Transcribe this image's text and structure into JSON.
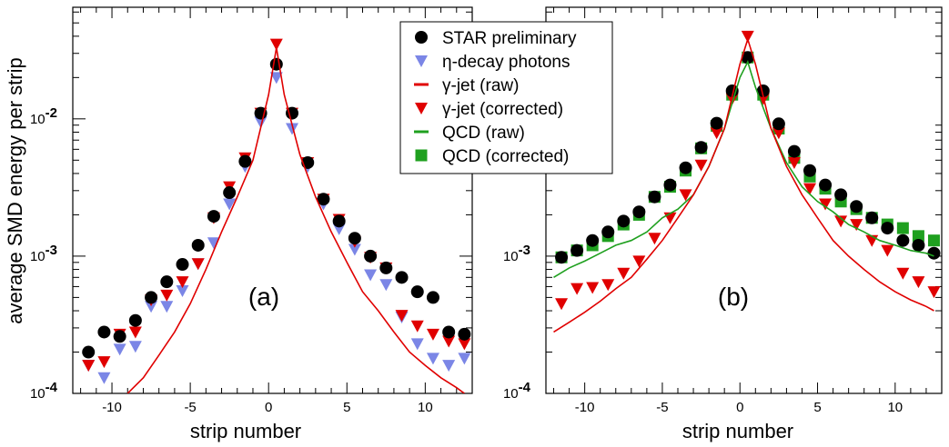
{
  "figure": {
    "ylabel": "average SMD energy per strip",
    "xlabel": "strip number"
  },
  "legend": {
    "items": [
      {
        "key": "star",
        "label": "STAR preliminary",
        "marker": "circle",
        "color": "#000000"
      },
      {
        "key": "eta",
        "label": "η-decay photons",
        "marker": "triangle-down",
        "color": "#7b86e6"
      },
      {
        "key": "gj_raw",
        "label": "γ-jet (raw)",
        "marker": "line",
        "color": "#e00000"
      },
      {
        "key": "gj_corr",
        "label": "γ-jet (corrected)",
        "marker": "triangle-down",
        "color": "#e00000"
      },
      {
        "key": "qcd_raw",
        "label": "QCD (raw)",
        "marker": "line",
        "color": "#1fa01f"
      },
      {
        "key": "qcd_corr",
        "label": "QCD (corrected)",
        "marker": "square",
        "color": "#1fa01f"
      }
    ]
  },
  "chart_data": [
    {
      "type": "scatter",
      "panel": "(a)",
      "xlabel": "strip number",
      "ylabel": "average SMD energy per strip",
      "yscale": "log",
      "xlim": [
        -12.5,
        13
      ],
      "ylim": [
        0.0001,
        0.065
      ],
      "xticks": [
        -10,
        -5,
        0,
        5,
        10
      ],
      "yticks": [
        {
          "value": 0.0001,
          "base": "10",
          "exp": "-4"
        },
        {
          "value": 0.001,
          "base": "10",
          "exp": "-3"
        },
        {
          "value": 0.01,
          "base": "10",
          "exp": "-2"
        }
      ],
      "series": [
        {
          "name": "η-decay photons",
          "marker": "triangle-down",
          "color": "#7b86e6",
          "x": [
            -11.5,
            -10.5,
            -9.5,
            -8.5,
            -7.5,
            -6.5,
            -5.5,
            -4.5,
            -3.5,
            -2.5,
            -1.5,
            -0.5,
            0.5,
            1.5,
            2.5,
            3.5,
            4.5,
            5.5,
            6.5,
            7.5,
            8.5,
            9.5,
            10.5,
            11.5,
            12.5
          ],
          "y": [
            0.00016,
            0.00013,
            0.00021,
            0.00022,
            0.00043,
            0.00043,
            0.00056,
            0.00088,
            0.00125,
            0.0024,
            0.0045,
            0.0095,
            0.02,
            0.0085,
            0.0045,
            0.0024,
            0.00158,
            0.00112,
            0.00073,
            0.00062,
            0.00036,
            0.00023,
            0.00018,
            0.00016,
            0.00018
          ]
        },
        {
          "name": "γ-jet (corrected)",
          "marker": "triangle-down",
          "color": "#e00000",
          "x": [
            -11.5,
            -10.5,
            -9.5,
            -8.5,
            -7.5,
            -6.5,
            -5.5,
            -4.5,
            -3.5,
            -2.5,
            -1.5,
            -0.5,
            0.5,
            1.5,
            2.5,
            3.5,
            4.5,
            5.5,
            6.5,
            7.5,
            8.5,
            9.5,
            10.5,
            11.5,
            12.5
          ],
          "y": [
            0.00016,
            0.00017,
            0.00027,
            0.00028,
            0.00048,
            0.00052,
            0.00065,
            0.00088,
            0.0019,
            0.0032,
            0.0052,
            0.011,
            0.035,
            0.011,
            0.0048,
            0.0026,
            0.00185,
            0.00128,
            0.00098,
            0.00082,
            0.00037,
            0.00031,
            0.00027,
            0.00024,
            0.00023
          ]
        },
        {
          "name": "STAR preliminary",
          "marker": "circle",
          "color": "#000000",
          "x": [
            -11.5,
            -10.5,
            -9.5,
            -8.5,
            -7.5,
            -6.5,
            -5.5,
            -4.5,
            -3.5,
            -2.5,
            -1.5,
            -0.5,
            0.5,
            1.5,
            2.5,
            3.5,
            4.5,
            5.5,
            6.5,
            7.5,
            8.5,
            9.5,
            10.5,
            11.5,
            12.5
          ],
          "y": [
            0.0002,
            0.00028,
            0.00026,
            0.00034,
            0.0005,
            0.00065,
            0.00087,
            0.0012,
            0.00195,
            0.0029,
            0.0049,
            0.011,
            0.025,
            0.011,
            0.0048,
            0.0026,
            0.0018,
            0.00135,
            0.001,
            0.00082,
            0.0007,
            0.00055,
            0.0005,
            0.00028,
            0.00027
          ]
        },
        {
          "name": "γ-jet (raw)",
          "marker": "line",
          "color": "#e00000",
          "x": [
            -9,
            -8,
            -7,
            -6,
            -5,
            -4,
            -3,
            -2,
            -1,
            0,
            0.5,
            1,
            2,
            3,
            4,
            5,
            6,
            7,
            8,
            9,
            10,
            11,
            12,
            12.5
          ],
          "y": [
            0.0001,
            0.00013,
            0.00019,
            0.00028,
            0.00045,
            0.0008,
            0.0015,
            0.0027,
            0.005,
            0.015,
            0.033,
            0.015,
            0.0055,
            0.0027,
            0.0015,
            0.0009,
            0.00055,
            0.0004,
            0.00028,
            0.0002,
            0.00016,
            0.00013,
            0.00011,
            0.0001
          ]
        }
      ]
    },
    {
      "type": "scatter",
      "panel": "(b)",
      "xlabel": "strip number",
      "ylabel": "",
      "yscale": "log",
      "xlim": [
        -12.5,
        13
      ],
      "ylim": [
        0.0001,
        0.065
      ],
      "xticks": [
        -10,
        -5,
        0,
        5,
        10
      ],
      "yticks": [
        {
          "value": 0.0001,
          "base": "10",
          "exp": "-4"
        },
        {
          "value": 0.001,
          "base": "10",
          "exp": "-3"
        }
      ],
      "series": [
        {
          "name": "QCD (corrected)",
          "marker": "square",
          "color": "#1fa01f",
          "x": [
            -11.5,
            -10.5,
            -9.5,
            -8.5,
            -7.5,
            -6.5,
            -5.5,
            -4.5,
            -3.5,
            -2.5,
            -1.5,
            -0.5,
            0.5,
            1.5,
            2.5,
            3.5,
            4.5,
            5.5,
            6.5,
            7.5,
            8.5,
            9.5,
            10.5,
            11.5,
            12.5
          ],
          "y": [
            0.00098,
            0.0011,
            0.0012,
            0.0014,
            0.0017,
            0.002,
            0.0027,
            0.0032,
            0.0042,
            0.0061,
            0.0089,
            0.015,
            0.028,
            0.015,
            0.0085,
            0.0052,
            0.0038,
            0.0031,
            0.0025,
            0.0022,
            0.0019,
            0.0017,
            0.0016,
            0.0014,
            0.0013
          ]
        },
        {
          "name": "γ-jet (corrected)",
          "marker": "triangle-down",
          "color": "#e00000",
          "x": [
            -11.5,
            -10.5,
            -9.5,
            -8.5,
            -7.5,
            -6.5,
            -5.5,
            -4.5,
            -3.5,
            -2.5,
            -1.5,
            -0.5,
            0.5,
            1.5,
            2.5,
            3.5,
            4.5,
            5.5,
            6.5,
            7.5,
            8.5,
            9.5,
            10.5,
            11.5,
            12.5
          ],
          "y": [
            0.00045,
            0.00058,
            0.00059,
            0.00062,
            0.00075,
            0.00092,
            0.00135,
            0.0019,
            0.0028,
            0.0046,
            0.0079,
            0.014,
            0.04,
            0.014,
            0.0079,
            0.0048,
            0.0031,
            0.0024,
            0.0018,
            0.0017,
            0.0013,
            0.0011,
            0.00075,
            0.00065,
            0.00055
          ]
        },
        {
          "name": "STAR preliminary",
          "marker": "circle",
          "color": "#000000",
          "x": [
            -11.5,
            -10.5,
            -9.5,
            -8.5,
            -7.5,
            -6.5,
            -5.5,
            -4.5,
            -3.5,
            -2.5,
            -1.5,
            -0.5,
            0.5,
            1.5,
            2.5,
            3.5,
            4.5,
            5.5,
            6.5,
            7.5,
            8.5,
            9.5,
            10.5,
            11.5,
            12.5
          ],
          "y": [
            0.00098,
            0.0011,
            0.0013,
            0.0015,
            0.0018,
            0.0021,
            0.0027,
            0.0033,
            0.0044,
            0.0062,
            0.0093,
            0.016,
            0.028,
            0.016,
            0.0092,
            0.0058,
            0.0042,
            0.0033,
            0.0028,
            0.0023,
            0.0019,
            0.0016,
            0.0013,
            0.0012,
            0.00105
          ]
        },
        {
          "name": "QCD (raw)",
          "marker": "line",
          "color": "#1fa01f",
          "x": [
            -12,
            -11,
            -10,
            -9,
            -8,
            -7,
            -6,
            -5,
            -4,
            -3,
            -2,
            -1,
            0,
            0.5,
            1,
            2,
            3,
            4,
            5,
            6,
            7,
            8,
            9,
            10,
            11,
            12,
            12.5
          ],
          "y": [
            0.0007,
            0.00082,
            0.00092,
            0.00105,
            0.0012,
            0.0013,
            0.0015,
            0.0019,
            0.0022,
            0.0028,
            0.0045,
            0.0085,
            0.02,
            0.026,
            0.017,
            0.0085,
            0.0048,
            0.0032,
            0.0025,
            0.0021,
            0.0017,
            0.0015,
            0.0013,
            0.0012,
            0.0011,
            0.00105,
            0.001
          ]
        },
        {
          "name": "γ-jet (raw)",
          "marker": "line",
          "color": "#e00000",
          "x": [
            -12,
            -11,
            -10,
            -9,
            -8,
            -7,
            -6,
            -5,
            -4,
            -3,
            -2,
            -1,
            0,
            0.5,
            1,
            2,
            3,
            4,
            5,
            6,
            7,
            8,
            9,
            10,
            11,
            12,
            12.5
          ],
          "y": [
            0.00028,
            0.00033,
            0.00039,
            0.00047,
            0.00058,
            0.0007,
            0.00095,
            0.0013,
            0.0019,
            0.0028,
            0.0045,
            0.0085,
            0.025,
            0.038,
            0.025,
            0.0085,
            0.0045,
            0.0028,
            0.0019,
            0.0013,
            0.001,
            0.0008,
            0.00065,
            0.00055,
            0.00048,
            0.00043,
            0.0004
          ]
        }
      ]
    }
  ]
}
